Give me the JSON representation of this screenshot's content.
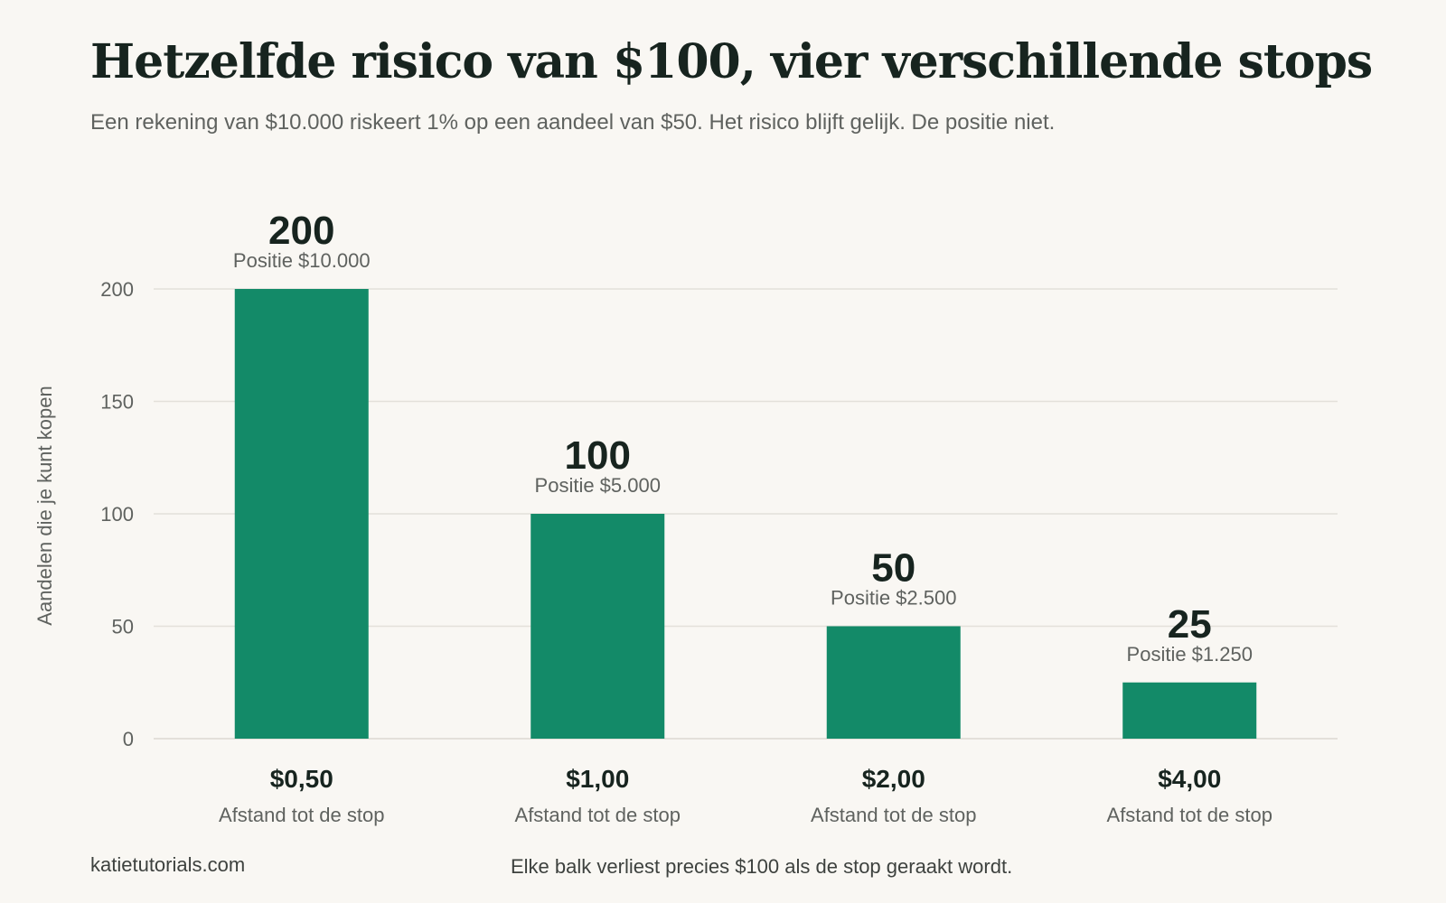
{
  "page": {
    "title": "Hetzelfde risico van $100, vier verschillende stops",
    "subtitle": "Een rekening van $10.000 riskeert 1% op een aandeel van $50. Het risico blijft gelijk. De positie niet.",
    "source": "katietutorials.com",
    "note": "Elke balk verliest precies $100 als de stop geraakt wordt."
  },
  "colors": {
    "bar": "#138a68",
    "grid": "#e3e0da",
    "axis_text": "#5f625f",
    "value_text": "#17241f"
  },
  "chart_data": {
    "type": "bar",
    "title": "Hetzelfde risico van $100, vier verschillende stops",
    "ylabel": "Aandelen die je kunt kopen",
    "xlabel": "",
    "category_sublabel": "Afstand tot de stop",
    "categories": [
      "$0,50",
      "$1,00",
      "$2,00",
      "$4,00"
    ],
    "values": [
      200,
      100,
      50,
      25
    ],
    "value_labels": [
      "200",
      "100",
      "50",
      "25"
    ],
    "positions": [
      "Positie $10.000",
      "Positie $5.000",
      "Positie $2.500",
      "Positie $1.250"
    ],
    "yticks": [
      0,
      50,
      100,
      150,
      200
    ],
    "ylim": [
      0,
      200
    ],
    "grid": true,
    "legend": "none"
  }
}
